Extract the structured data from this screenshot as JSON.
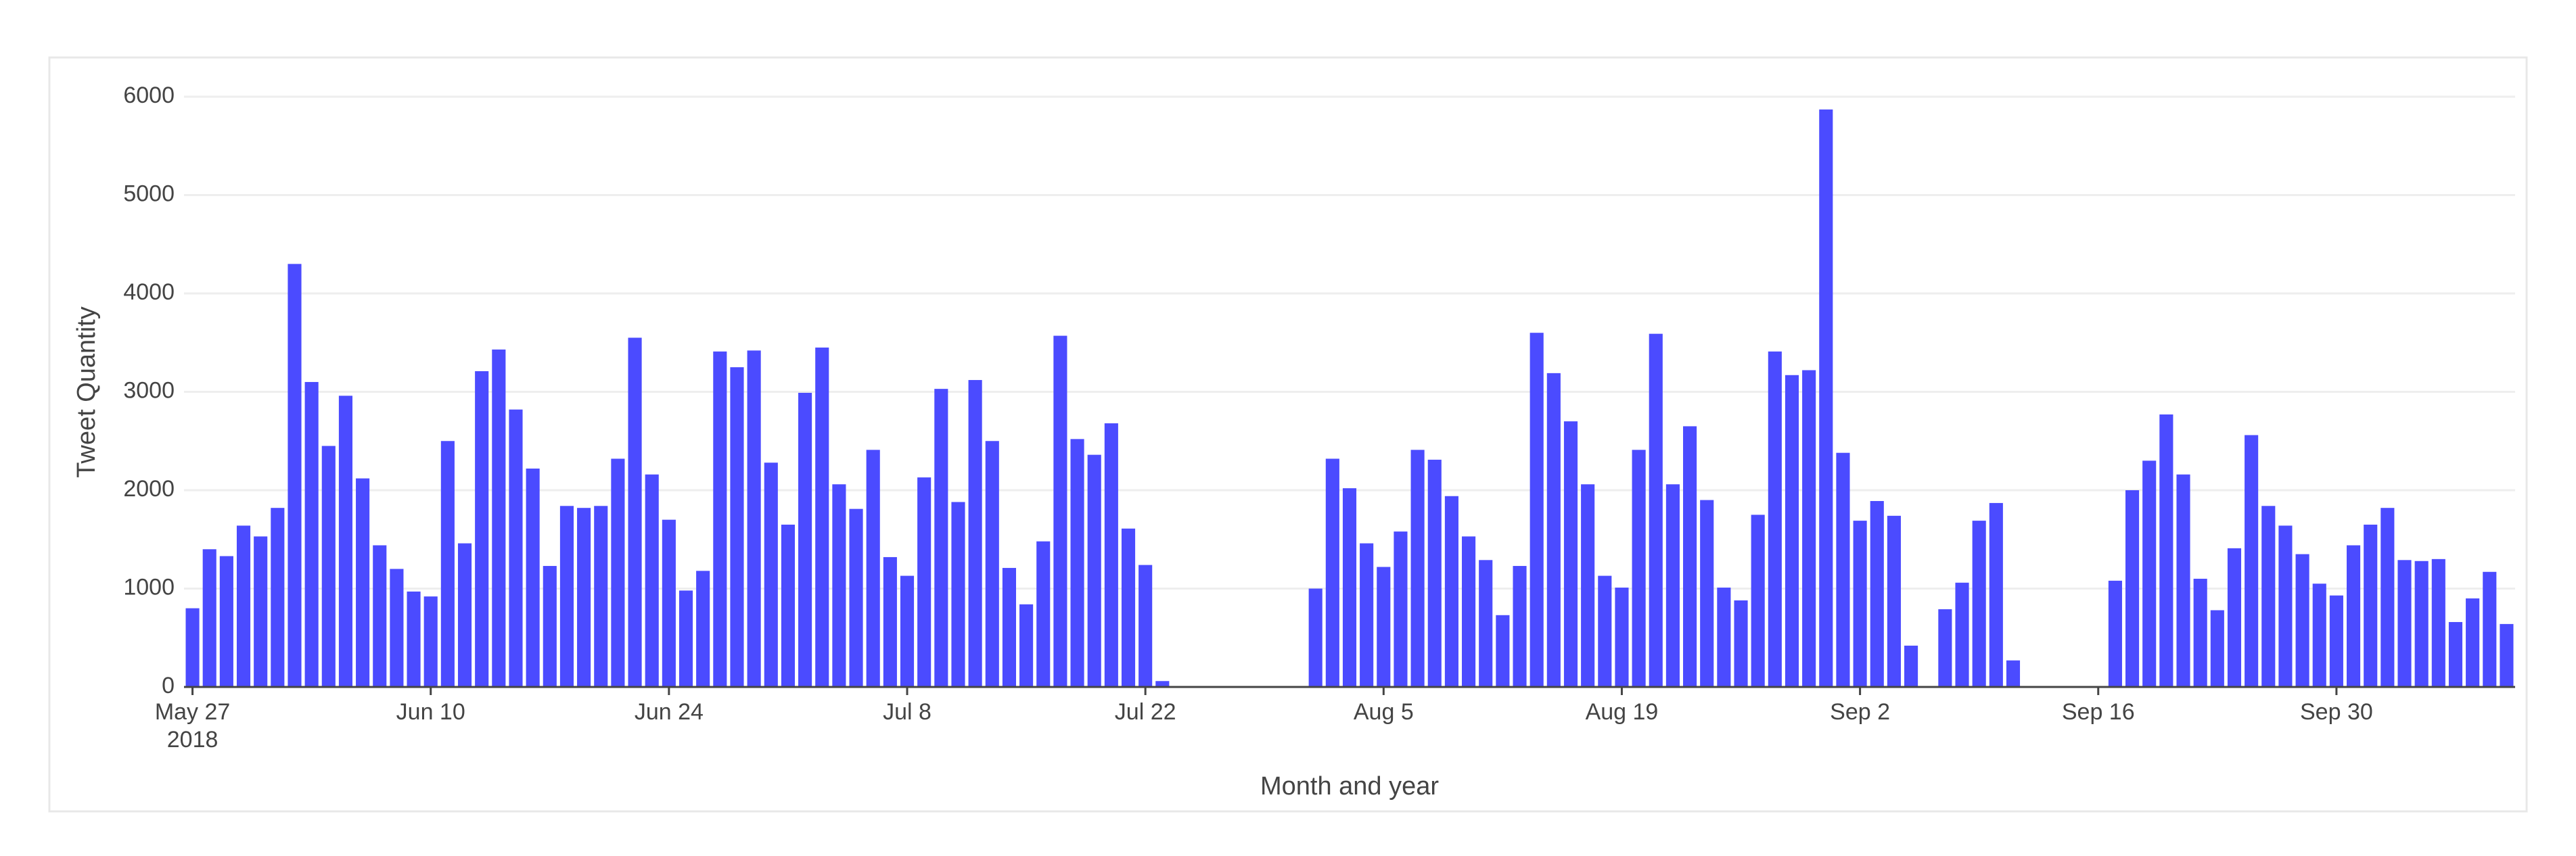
{
  "chart_data": {
    "type": "bar",
    "ylabel": "Tweet Quantity",
    "xlabel": "Month and year",
    "color": "#4b4bff",
    "grid": true,
    "x": [
      "2018-05-27",
      "2018-05-28",
      "2018-05-29",
      "2018-05-30",
      "2018-05-31",
      "2018-06-01",
      "2018-06-02",
      "2018-06-03",
      "2018-06-04",
      "2018-06-05",
      "2018-06-06",
      "2018-06-07",
      "2018-06-08",
      "2018-06-09",
      "2018-06-10",
      "2018-06-11",
      "2018-06-12",
      "2018-06-13",
      "2018-06-14",
      "2018-06-15",
      "2018-06-16",
      "2018-06-17",
      "2018-06-18",
      "2018-06-19",
      "2018-06-20",
      "2018-06-21",
      "2018-06-22",
      "2018-06-23",
      "2018-06-24",
      "2018-06-25",
      "2018-06-26",
      "2018-06-27",
      "2018-06-28",
      "2018-06-29",
      "2018-06-30",
      "2018-07-01",
      "2018-07-02",
      "2018-07-03",
      "2018-07-04",
      "2018-07-05",
      "2018-07-06",
      "2018-07-07",
      "2018-07-08",
      "2018-07-09",
      "2018-07-10",
      "2018-07-11",
      "2018-07-12",
      "2018-07-13",
      "2018-07-14",
      "2018-07-15",
      "2018-07-16",
      "2018-07-17",
      "2018-07-18",
      "2018-07-19",
      "2018-07-20",
      "2018-07-21",
      "2018-07-22",
      "2018-07-23",
      "2018-07-24",
      "2018-07-25",
      "2018-07-26",
      "2018-07-27",
      "2018-07-28",
      "2018-07-29",
      "2018-07-30",
      "2018-07-31",
      "2018-08-01",
      "2018-08-02",
      "2018-08-03",
      "2018-08-04",
      "2018-08-05",
      "2018-08-06",
      "2018-08-07",
      "2018-08-08",
      "2018-08-09",
      "2018-08-10",
      "2018-08-11",
      "2018-08-12",
      "2018-08-13",
      "2018-08-14",
      "2018-08-15",
      "2018-08-16",
      "2018-08-17",
      "2018-08-18",
      "2018-08-19",
      "2018-08-20",
      "2018-08-21",
      "2018-08-22",
      "2018-08-23",
      "2018-08-24",
      "2018-08-25",
      "2018-08-26",
      "2018-08-27",
      "2018-08-28",
      "2018-08-29",
      "2018-08-30",
      "2018-08-31",
      "2018-09-01",
      "2018-09-02",
      "2018-09-03",
      "2018-09-04",
      "2018-09-05",
      "2018-09-06",
      "2018-09-07",
      "2018-09-08",
      "2018-09-09",
      "2018-09-10",
      "2018-09-11",
      "2018-09-12",
      "2018-09-13",
      "2018-09-14",
      "2018-09-15",
      "2018-09-16",
      "2018-09-17",
      "2018-09-18",
      "2018-09-19",
      "2018-09-20",
      "2018-09-21",
      "2018-09-22",
      "2018-09-23",
      "2018-09-24",
      "2018-09-25",
      "2018-09-26",
      "2018-09-27",
      "2018-09-28",
      "2018-09-29",
      "2018-09-30",
      "2018-10-01",
      "2018-10-02",
      "2018-10-03",
      "2018-10-04",
      "2018-10-05",
      "2018-10-06",
      "2018-10-07",
      "2018-10-08",
      "2018-10-09",
      "2018-10-10"
    ],
    "values": [
      800,
      1400,
      1330,
      1640,
      1530,
      1820,
      4300,
      3100,
      2450,
      2960,
      2120,
      1440,
      1200,
      970,
      920,
      2500,
      1460,
      3210,
      3430,
      2820,
      2220,
      1230,
      1840,
      1820,
      1840,
      2320,
      3550,
      2160,
      1700,
      980,
      1180,
      3410,
      3250,
      3420,
      2280,
      1650,
      2990,
      3450,
      2060,
      1810,
      2410,
      1320,
      1130,
      2130,
      3030,
      1880,
      3120,
      2500,
      1210,
      840,
      1480,
      3570,
      2520,
      2360,
      2680,
      1610,
      1240,
      60,
      0,
      0,
      0,
      0,
      0,
      0,
      0,
      0,
      1000,
      2320,
      2020,
      1460,
      1220,
      1580,
      2410,
      2310,
      1940,
      1530,
      1290,
      730,
      1230,
      3600,
      3190,
      2700,
      2060,
      1130,
      1010,
      2410,
      3590,
      2060,
      2650,
      1900,
      1010,
      880,
      1750,
      3410,
      3170,
      3220,
      5870,
      2380,
      1690,
      1890,
      1740,
      420,
      0,
      790,
      1060,
      1690,
      1870,
      270,
      0,
      0,
      0,
      0,
      0,
      1080,
      2000,
      2300,
      2770,
      2160,
      1100,
      780,
      1410,
      2560,
      1840,
      1640,
      1350,
      1050,
      930,
      1440,
      1650,
      1820,
      1290,
      1280,
      1300,
      660,
      900,
      1170,
      640
    ],
    "xlim": [
      "2018-05-26T12:00:00Z",
      "2018-10-10T12:00:00Z"
    ],
    "xticks": [
      {
        "value": "2018-05-27",
        "label": "May 27\n2018"
      },
      {
        "value": "2018-06-10",
        "label": "Jun 10"
      },
      {
        "value": "2018-06-24",
        "label": "Jun 24"
      },
      {
        "value": "2018-07-08",
        "label": "Jul 8"
      },
      {
        "value": "2018-07-22",
        "label": "Jul 22"
      },
      {
        "value": "2018-08-05",
        "label": "Aug 5"
      },
      {
        "value": "2018-08-19",
        "label": "Aug 19"
      },
      {
        "value": "2018-09-02",
        "label": "Sep 2"
      },
      {
        "value": "2018-09-16",
        "label": "Sep 16"
      },
      {
        "value": "2018-09-30",
        "label": "Sep 30"
      }
    ],
    "ylim": [
      0,
      6000
    ],
    "yticks": [
      0,
      1000,
      2000,
      3000,
      4000,
      5000,
      6000
    ]
  }
}
